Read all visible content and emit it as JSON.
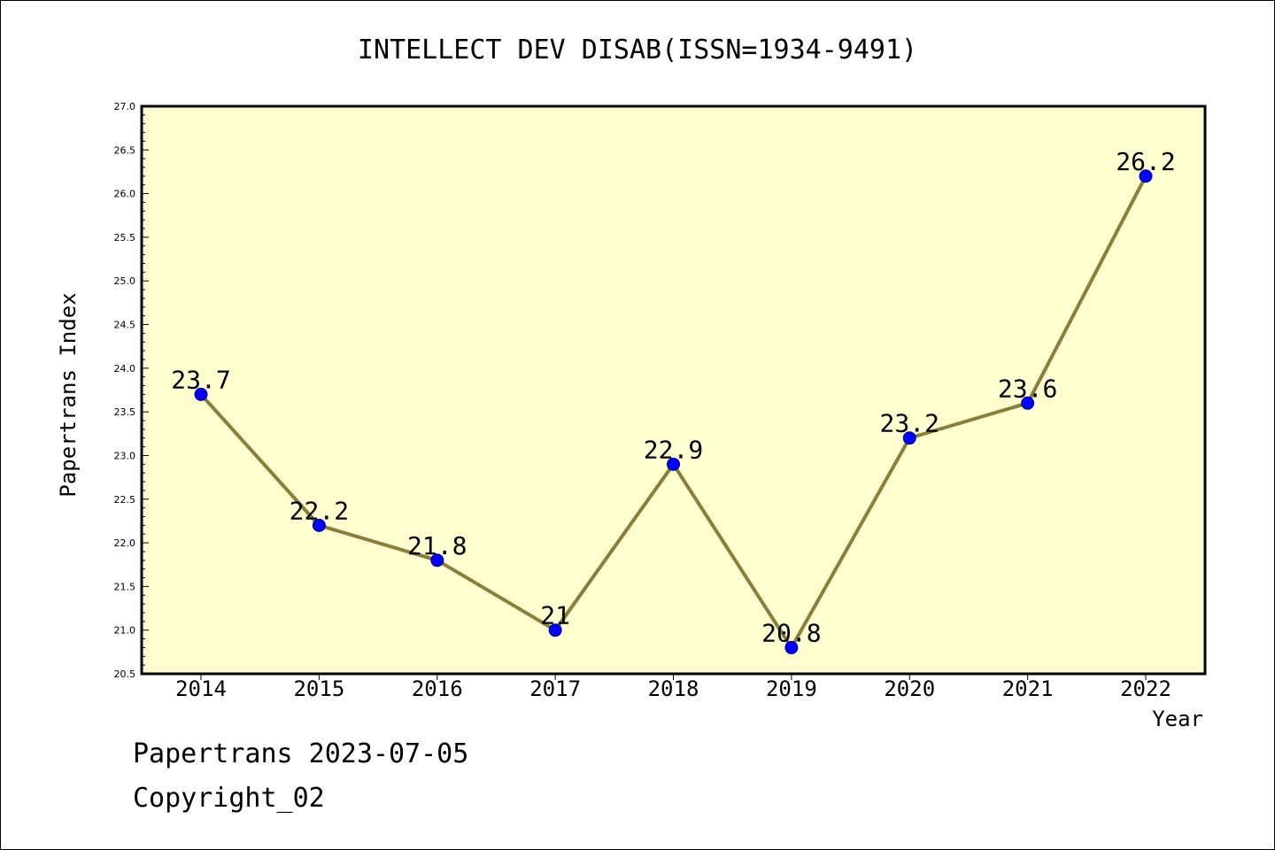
{
  "chart_data": {
    "type": "line",
    "title": "INTELLECT DEV DISAB(ISSN=1934-9491)",
    "xlabel": "Year",
    "ylabel": "Papertrans Index",
    "categories": [
      "2014",
      "2015",
      "2016",
      "2017",
      "2018",
      "2019",
      "2020",
      "2021",
      "2022"
    ],
    "values": [
      23.7,
      22.2,
      21.8,
      21,
      22.9,
      20.8,
      23.2,
      23.6,
      26.2
    ],
    "data_labels": [
      "23.7",
      "22.2",
      "21.8",
      "21",
      "22.9",
      "20.8",
      "23.2",
      "23.6",
      "26.2"
    ],
    "ylim": [
      20.5,
      27.0
    ],
    "yticks": [
      "20.5",
      "21.0",
      "21.5",
      "22.0",
      "22.5",
      "23.0",
      "23.5",
      "24.0",
      "24.5",
      "25.0",
      "25.5",
      "26.0",
      "26.5",
      "27.0"
    ],
    "grid": false,
    "colors": {
      "plot_background": "#ffffd0",
      "line": "#8b7d3a",
      "marker": "#0000ff"
    }
  },
  "footer": {
    "line1": "Papertrans 2023-07-05",
    "line2": "Copyright_02"
  }
}
